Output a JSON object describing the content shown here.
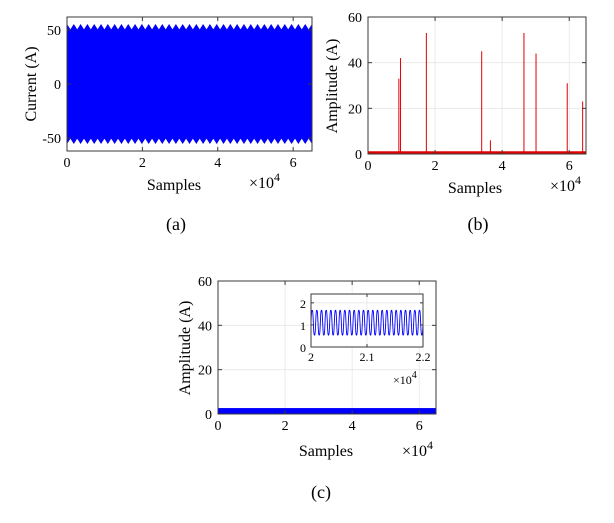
{
  "colors": {
    "blue": "#0000ff",
    "red": "#e00000",
    "grid": "#e6e6e6",
    "axis": "#3a3a3a"
  },
  "chart_data": [
    {
      "id": "a",
      "type": "line",
      "caption": "(a)",
      "xlabel": "Samples",
      "ylabel": "Current (A)",
      "x_exponent": "×10",
      "x_exponent_power": "4",
      "xlim": [
        0,
        65000
      ],
      "ylim": [
        -62,
        62
      ],
      "xticks": [
        0,
        20000,
        40000,
        60000
      ],
      "xtick_labels": [
        "0",
        "2",
        "4",
        "6"
      ],
      "yticks": [
        -50,
        0,
        50
      ],
      "ytick_labels": [
        "-50",
        "0",
        "50"
      ],
      "grid": true,
      "series": [
        {
          "color": "#0000ff",
          "description_values": {
            "envelope_peak": 55,
            "ripple_min": 50,
            "cycles_in_view": 36
          }
        }
      ]
    },
    {
      "id": "b",
      "type": "line",
      "caption": "(b)",
      "xlabel": "Samples",
      "ylabel": "Amplitude (A)",
      "x_exponent": "×10",
      "x_exponent_power": "4",
      "xlim": [
        0,
        65000
      ],
      "ylim": [
        0,
        60
      ],
      "xticks": [
        0,
        20000,
        40000,
        60000
      ],
      "xtick_labels": [
        "0",
        "2",
        "4",
        "6"
      ],
      "yticks": [
        0,
        20,
        40,
        60
      ],
      "ytick_labels": [
        "0",
        "20",
        "40",
        "60"
      ],
      "grid": true,
      "baseline": 1.2,
      "spikes": [
        {
          "x": 9200,
          "y": 33
        },
        {
          "x": 9700,
          "y": 42
        },
        {
          "x": 17400,
          "y": 53
        },
        {
          "x": 33900,
          "y": 45
        },
        {
          "x": 36500,
          "y": 6
        },
        {
          "x": 46500,
          "y": 53
        },
        {
          "x": 50100,
          "y": 44
        },
        {
          "x": 59400,
          "y": 31
        },
        {
          "x": 64000,
          "y": 23
        }
      ]
    },
    {
      "id": "c",
      "type": "line",
      "caption": "(c)",
      "xlabel": "Samples",
      "ylabel": "Amplitude (A)",
      "x_exponent": "×10",
      "x_exponent_power": "4",
      "xlim": [
        0,
        65000
      ],
      "ylim": [
        0,
        60
      ],
      "xticks": [
        0,
        20000,
        40000,
        60000
      ],
      "xtick_labels": [
        "0",
        "2",
        "4",
        "6"
      ],
      "yticks": [
        0,
        20,
        40,
        60
      ],
      "ytick_labels": [
        "0",
        "20",
        "40",
        "60"
      ],
      "grid": true,
      "band": [
        0.2,
        2.0
      ],
      "inset": {
        "xlim": [
          20000,
          22000
        ],
        "ylim": [
          0,
          2.4
        ],
        "xticks": [
          20000,
          21000,
          22000
        ],
        "xtick_labels": [
          "2",
          "2.1",
          "2.2"
        ],
        "yticks": [
          0,
          1,
          2
        ],
        "ytick_labels": [
          "0",
          "1",
          "2"
        ],
        "x_exponent": "×10",
        "x_exponent_power": "4",
        "oscillation": {
          "min": 0.3,
          "max": 1.9,
          "cycles": 24
        }
      }
    }
  ]
}
